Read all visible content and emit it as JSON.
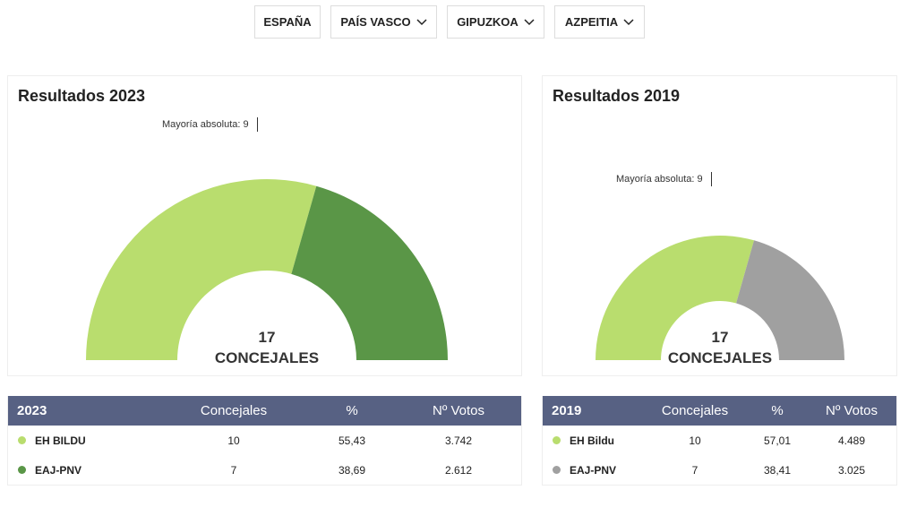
{
  "nav": [
    {
      "label": "ESPAÑA",
      "dropdown": false
    },
    {
      "label": "PAÍS VASCO",
      "dropdown": true
    },
    {
      "label": "GIPUZKOA",
      "dropdown": true
    },
    {
      "label": "AZPEITIA",
      "dropdown": true
    }
  ],
  "panels": [
    {
      "title": "Resultados 2023",
      "majority_label": "Mayoría absoluta: 9",
      "total": 17,
      "total_label": "CONCEJALES",
      "table": {
        "header": [
          "2023",
          "Concejales",
          "%",
          "Nº Votos"
        ],
        "rows": [
          {
            "party": "EH BILDU",
            "color": "#b9dd6e",
            "seats": 10,
            "percent": "55,43",
            "votes": "3.742"
          },
          {
            "party": "EAJ-PNV",
            "color": "#5a9647",
            "seats": 7,
            "percent": "38,69",
            "votes": "2.612"
          }
        ]
      }
    },
    {
      "title": "Resultados 2019",
      "majority_label": "Mayoría absoluta: 9",
      "total": 17,
      "total_label": "CONCEJALES",
      "table": {
        "header": [
          "2019",
          "Concejales",
          "%",
          "Nº Votos"
        ],
        "rows": [
          {
            "party": "EH Bildu",
            "color": "#b9dd6e",
            "seats": 10,
            "percent": "57,01",
            "votes": "4.489"
          },
          {
            "party": "EAJ-PNV",
            "color": "#a0a0a0",
            "seats": 7,
            "percent": "38,41",
            "votes": "3.025"
          }
        ]
      }
    }
  ]
}
